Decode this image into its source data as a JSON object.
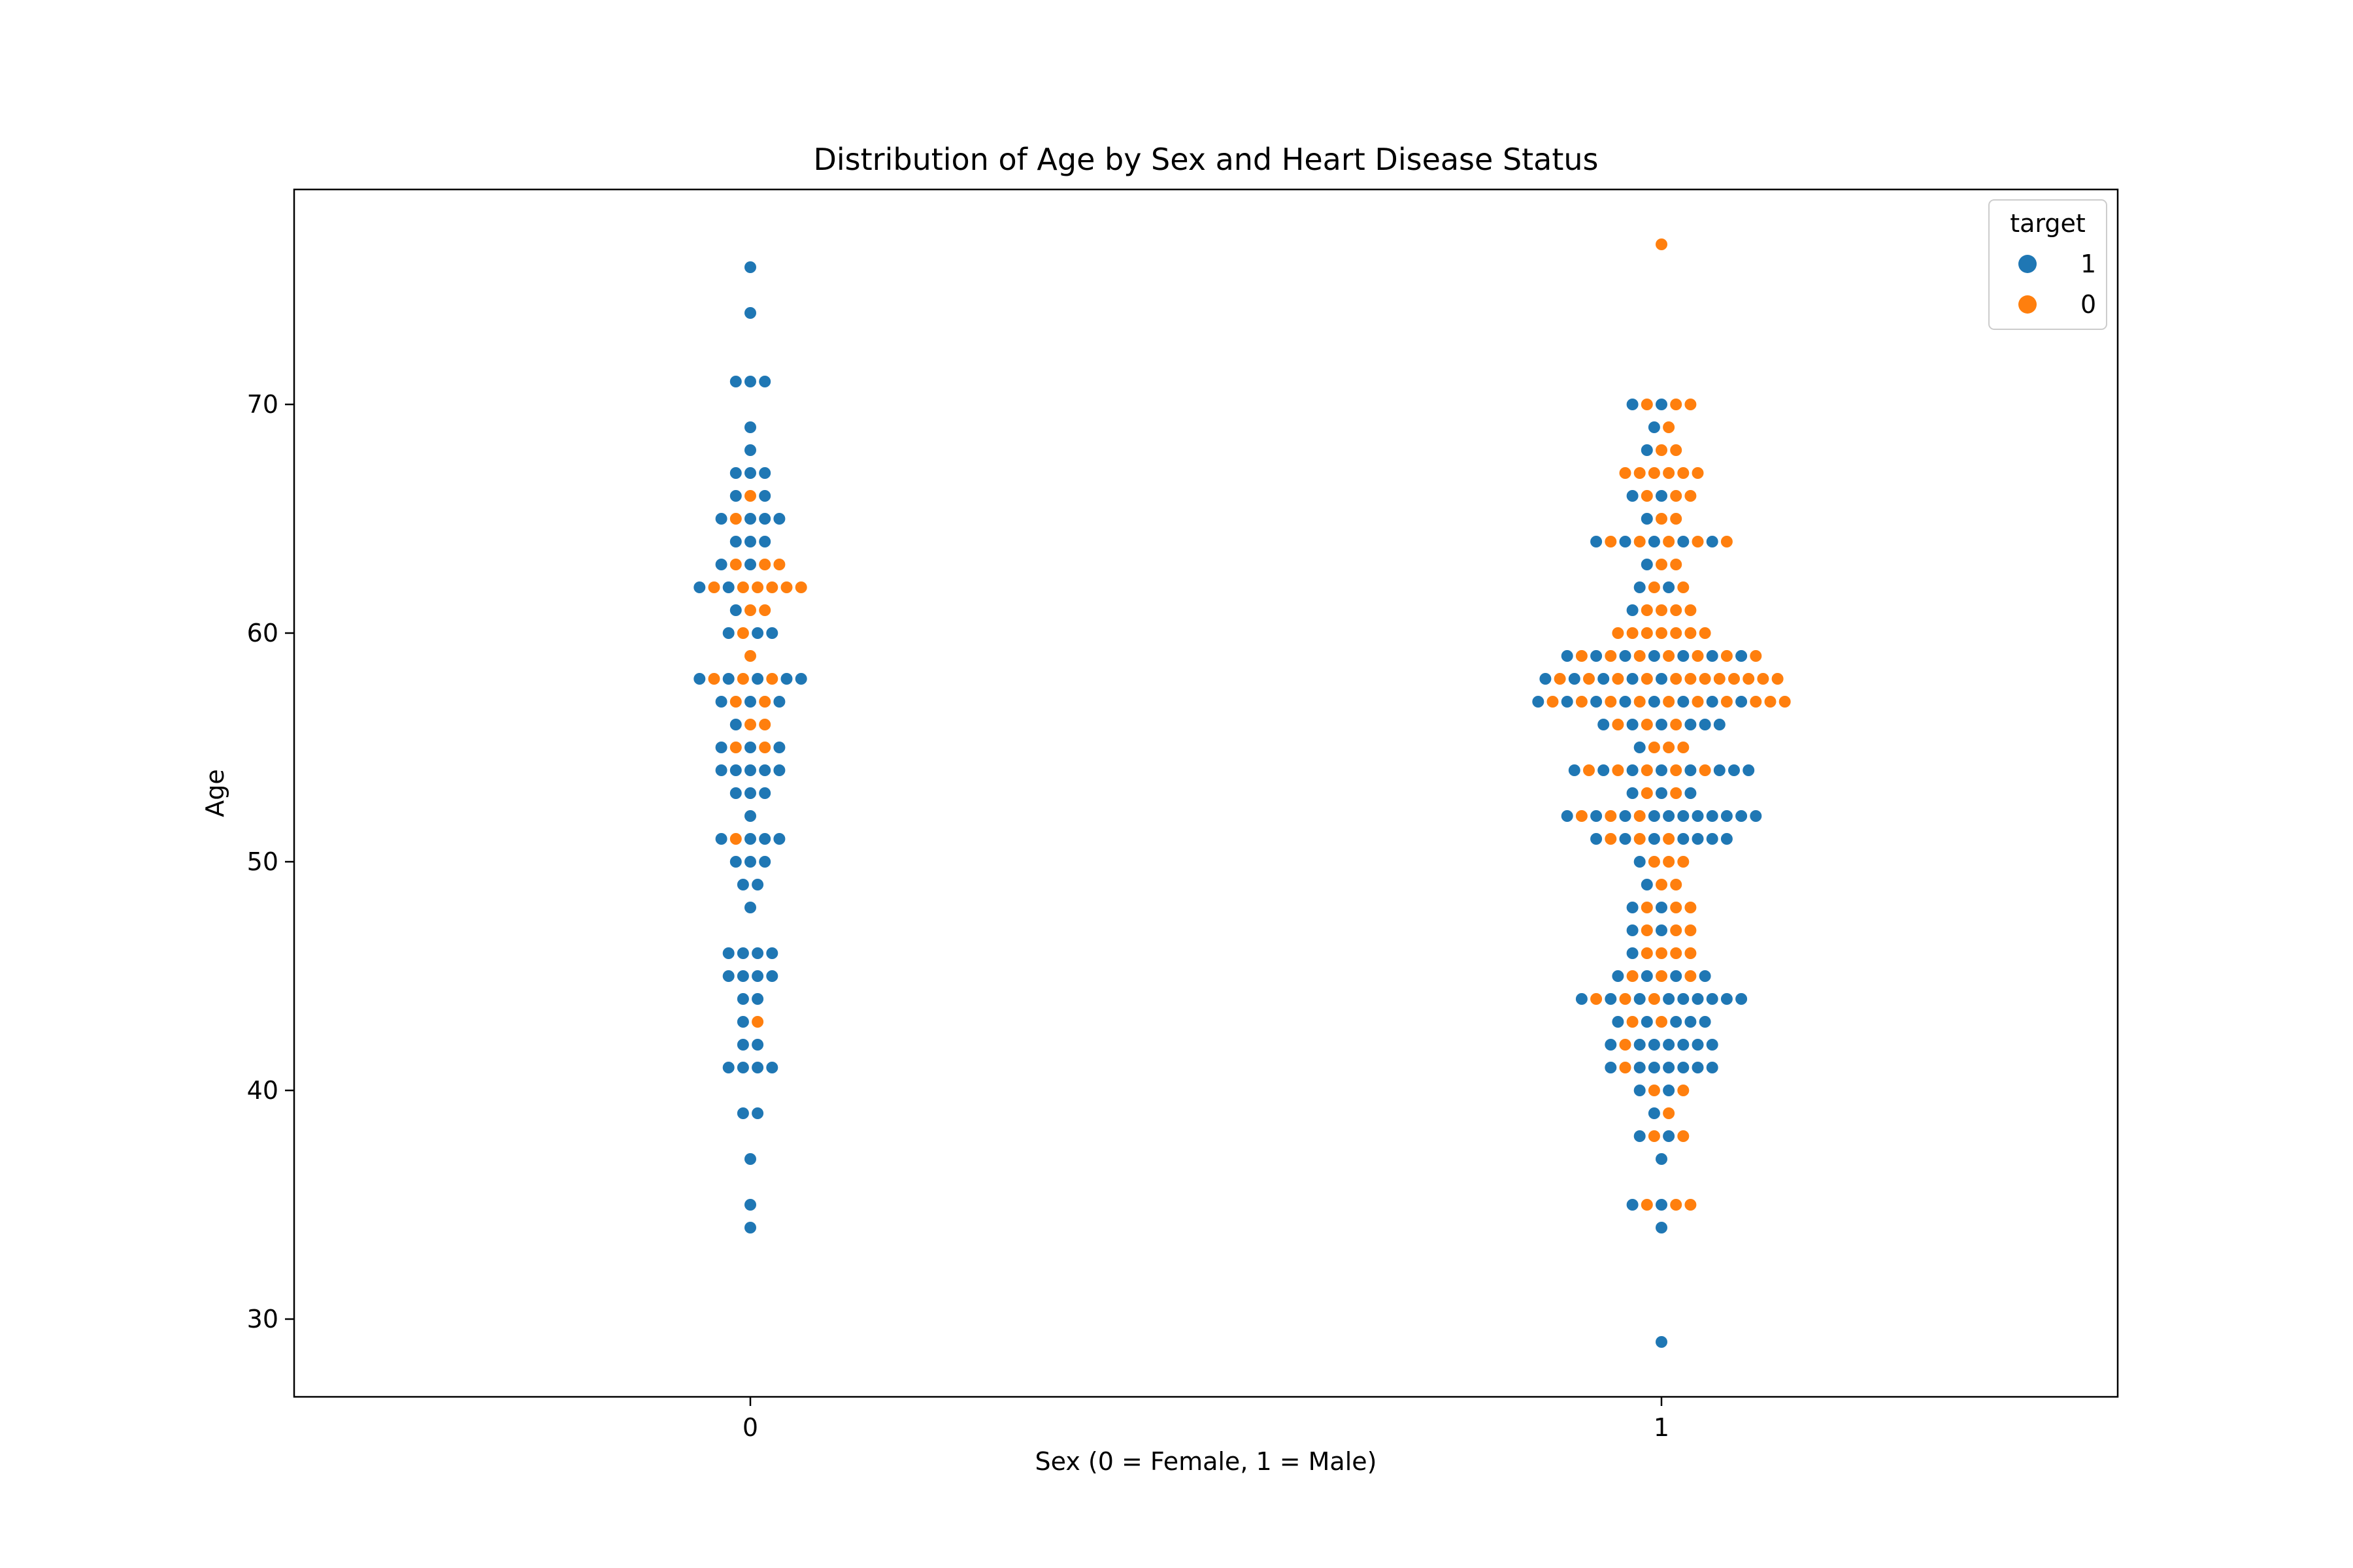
{
  "chart_data": {
    "type": "scatter",
    "subtype": "swarm",
    "title": "Distribution of Age by Sex and Heart Disease Status",
    "xlabel": "Sex (0 = Female, 1 = Male)",
    "ylabel": "Age",
    "categories": [
      "0",
      "1"
    ],
    "y_ticks": [
      30,
      40,
      50,
      60,
      70
    ],
    "ylim": [
      26.6,
      79.4
    ],
    "grid": false,
    "legend": {
      "title": "target",
      "placement": "top-right",
      "entries": [
        "1",
        "0"
      ]
    },
    "colors": {
      "1": "#1f77b4",
      "0": "#ff7f0e"
    },
    "series": [
      {
        "name": "1",
        "points": [
          {
            "x": "0",
            "ages": [
              76,
              74,
              71,
              71,
              71,
              69,
              68,
              67,
              67,
              67,
              66,
              66,
              65,
              65,
              65,
              65,
              64,
              64,
              64,
              63,
              63,
              62,
              62,
              61,
              60,
              60,
              60,
              58,
              58,
              58,
              58,
              58,
              57,
              57,
              57,
              56,
              55,
              55,
              55,
              54,
              54,
              54,
              54,
              54,
              53,
              53,
              53,
              52,
              51,
              51,
              51,
              51,
              50,
              50,
              50,
              49,
              49,
              48,
              46,
              46,
              46,
              46,
              45,
              45,
              45,
              45,
              44,
              44,
              43,
              42,
              42,
              41,
              41,
              41,
              41,
              39,
              39,
              37,
              35,
              34
            ]
          },
          {
            "x": "1",
            "ages": [
              70,
              70,
              69,
              68,
              66,
              66,
              65,
              64,
              64,
              64,
              64,
              64,
              63,
              62,
              62,
              61,
              59,
              59,
              59,
              59,
              59,
              59,
              59,
              58,
              58,
              58,
              58,
              58,
              57,
              57,
              57,
              57,
              57,
              57,
              57,
              57,
              56,
              56,
              56,
              56,
              56,
              56,
              55,
              54,
              54,
              54,
              54,
              54,
              54,
              54,
              54,
              53,
              53,
              53,
              52,
              52,
              52,
              52,
              52,
              52,
              52,
              52,
              52,
              52,
              52,
              51,
              51,
              51,
              51,
              51,
              51,
              51,
              50,
              49,
              48,
              48,
              47,
              47,
              46,
              45,
              45,
              45,
              45,
              44,
              44,
              44,
              44,
              44,
              44,
              44,
              44,
              44,
              43,
              43,
              43,
              43,
              43,
              42,
              42,
              42,
              42,
              42,
              42,
              42,
              41,
              41,
              41,
              41,
              41,
              41,
              41,
              40,
              40,
              39,
              38,
              38,
              37,
              35,
              35,
              34,
              29
            ]
          }
        ]
      },
      {
        "name": "0",
        "points": [
          {
            "x": "0",
            "ages": [
              66,
              65,
              63,
              63,
              63,
              62,
              62,
              62,
              62,
              62,
              62,
              61,
              61,
              60,
              59,
              58,
              58,
              58,
              57,
              57,
              56,
              56,
              55,
              55,
              51,
              43
            ]
          },
          {
            "x": "1",
            "ages": [
              77,
              70,
              70,
              70,
              69,
              68,
              68,
              67,
              67,
              67,
              67,
              67,
              67,
              66,
              66,
              66,
              65,
              65,
              64,
              64,
              64,
              64,
              64,
              63,
              63,
              62,
              62,
              61,
              61,
              61,
              61,
              60,
              60,
              60,
              60,
              60,
              60,
              60,
              59,
              59,
              59,
              59,
              59,
              59,
              59,
              58,
              58,
              58,
              58,
              58,
              58,
              58,
              58,
              58,
              58,
              58,
              58,
              57,
              57,
              57,
              57,
              57,
              57,
              57,
              57,
              57,
              57,
              56,
              56,
              56,
              55,
              55,
              55,
              54,
              54,
              54,
              54,
              54,
              53,
              53,
              52,
              52,
              52,
              51,
              51,
              51,
              50,
              50,
              50,
              49,
              49,
              48,
              48,
              48,
              47,
              47,
              47,
              46,
              46,
              46,
              46,
              45,
              45,
              45,
              44,
              44,
              44,
              43,
              43,
              42,
              41,
              40,
              40,
              39,
              38,
              38,
              35,
              35,
              35
            ]
          }
        ]
      }
    ]
  }
}
